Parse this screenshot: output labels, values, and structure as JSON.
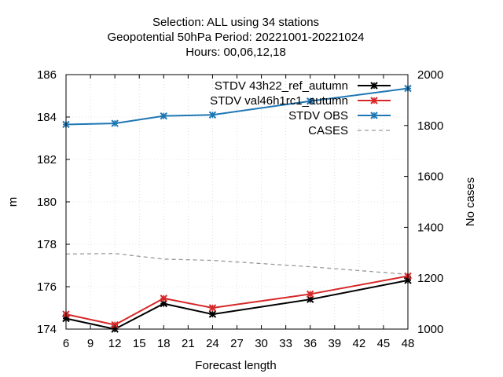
{
  "chart_data": {
    "type": "line",
    "title_lines": [
      "Selection: ALL using    34 stations",
      "Geopotential 50hPa   Period: 20221001-20221024",
      "Hours:  00,06,12,18"
    ],
    "xlabel": "Forecast length",
    "ylabel": "m",
    "y2label": "No cases",
    "xlim": [
      6,
      48
    ],
    "xticks": [
      6,
      9,
      12,
      15,
      18,
      21,
      24,
      27,
      30,
      33,
      36,
      39,
      42,
      45,
      48
    ],
    "ylim": [
      174,
      186
    ],
    "yticks": [
      174,
      176,
      178,
      180,
      182,
      184,
      186
    ],
    "y2lim": [
      1000,
      2000
    ],
    "y2ticks": [
      1000,
      1200,
      1400,
      1600,
      1800,
      2000
    ],
    "legend_position": "top-right",
    "x": [
      6,
      12,
      18,
      24,
      36,
      48
    ],
    "series": [
      {
        "name": "STDV 43h22_ref_autumn",
        "axis": "y",
        "color": "#000000",
        "marker": "x",
        "dashed": false,
        "values": [
          174.5,
          174.0,
          175.2,
          174.7,
          175.4,
          176.3
        ]
      },
      {
        "name": "STDV val46h1rc1_autumn",
        "axis": "y",
        "color": "#d62728",
        "marker": "x",
        "dashed": false,
        "values": [
          174.7,
          174.2,
          175.45,
          175.0,
          175.65,
          176.5
        ]
      },
      {
        "name": "STDV OBS",
        "axis": "y",
        "color": "#1f77b4",
        "marker": "x",
        "dashed": false,
        "values": [
          183.65,
          183.7,
          184.05,
          184.1,
          184.75,
          185.35
        ]
      },
      {
        "name": "CASES",
        "axis": "y2",
        "color": "#999999",
        "marker": "none",
        "dashed": true,
        "values": [
          1295,
          1297,
          1275,
          1270,
          1245,
          1215
        ]
      }
    ]
  }
}
